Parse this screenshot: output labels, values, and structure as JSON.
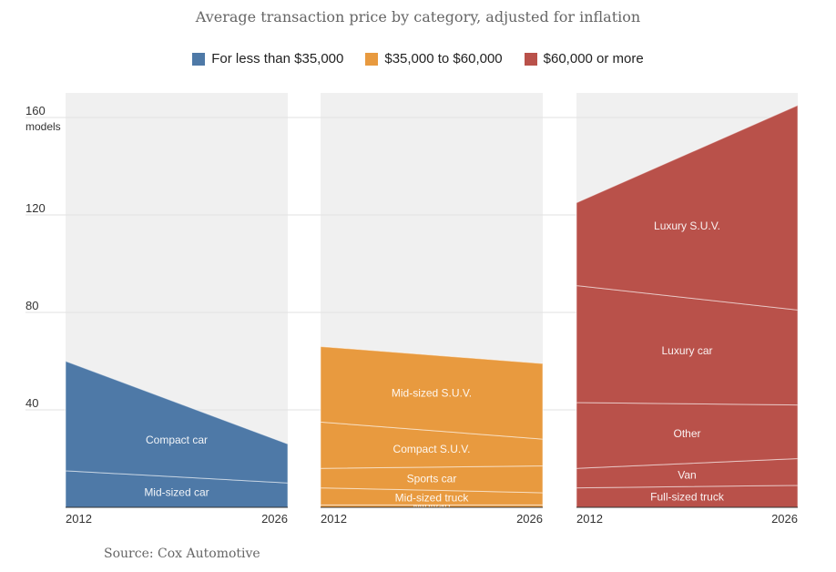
{
  "header": {
    "title": "Average transaction price by category, adjusted for inflation"
  },
  "legend": [
    {
      "label": "For less than $35,000",
      "color": "#4e79a7"
    },
    {
      "label": "$35,000 to $60,000",
      "color": "#e89a3f"
    },
    {
      "label": "$60,000 or more",
      "color": "#b9514a"
    }
  ],
  "footer": {
    "source": "Source: Cox Automotive"
  },
  "chart_data": {
    "type": "area",
    "title": "Average transaction price by category, adjusted for inflation",
    "ylabel": "models",
    "ylim": [
      0,
      170
    ],
    "yticks": [
      40,
      80,
      120,
      160
    ],
    "x": [
      2012,
      2026
    ],
    "grid": true,
    "panels": [
      {
        "name": "For less than $35,000",
        "color": "#4e79a7",
        "series": [
          {
            "name": "Mid-sized car",
            "values": [
              15,
              10
            ]
          },
          {
            "name": "Compact car",
            "values": [
              45,
              16
            ]
          }
        ]
      },
      {
        "name": "$35,000 to $60,000",
        "color": "#e89a3f",
        "series": [
          {
            "name": "Minivan",
            "values": [
              1,
              1
            ]
          },
          {
            "name": "Mid-sized truck",
            "values": [
              7,
              5
            ]
          },
          {
            "name": "Sports car",
            "values": [
              8,
              11
            ]
          },
          {
            "name": "Compact S.U.V.",
            "values": [
              19,
              11
            ]
          },
          {
            "name": "Mid-sized S.U.V.",
            "values": [
              31,
              31
            ]
          }
        ]
      },
      {
        "name": "$60,000 or more",
        "color": "#b9514a",
        "series": [
          {
            "name": "Full-sized truck",
            "values": [
              8,
              9
            ]
          },
          {
            "name": "Van",
            "values": [
              8,
              11
            ]
          },
          {
            "name": "Other",
            "values": [
              27,
              22
            ]
          },
          {
            "name": "Luxury car",
            "values": [
              48,
              39
            ]
          },
          {
            "name": "Luxury S.U.V.",
            "values": [
              34,
              84
            ]
          }
        ]
      }
    ]
  }
}
